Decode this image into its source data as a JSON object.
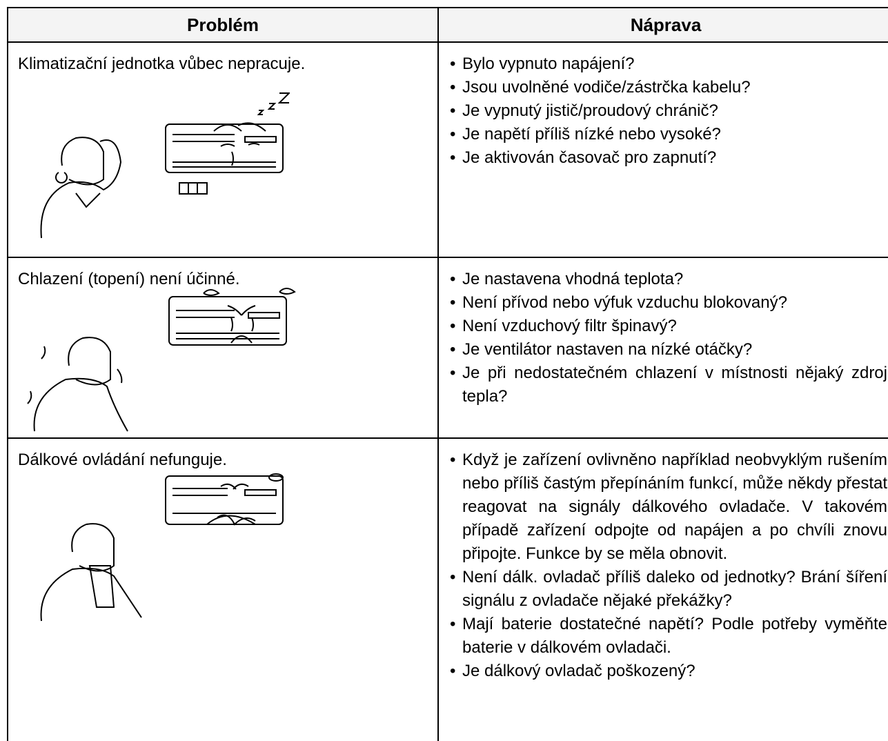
{
  "table": {
    "headers": [
      "Problém",
      "Náprava"
    ],
    "rows": [
      {
        "problem": "Klimatizační jednotka vůbec nepracuje.",
        "remedies": [
          "Bylo vypnuto napájení?",
          "Jsou uvolněné vodiče/zástrčka kabelu?",
          "Je vypnutý jistič/proudový chránič?",
          "Je napětí příliš nízké nebo vysoké?",
          "Je aktivován časovač pro zapnutí?"
        ]
      },
      {
        "problem": "Chlazení (topení) není účinné.",
        "remedies": [
          "Je nastavena vhodná teplota?",
          "Není přívod nebo výfuk vzduchu blokovaný?",
          "Není vzduchový filtr špinavý?",
          "Je ventilátor nastaven na nízké otáčky?",
          "Je při nedostatečném chlazení v místnosti nějaký zdroj tepla?"
        ]
      },
      {
        "problem": "Dálkové ovládání nefunguje.",
        "remedies": [
          "Když je zařízení ovlivněno například neobvyklým rušením nebo příliš častým přepínáním funkcí, může někdy přestat reagovat na signály dálkového ovladače. V takovém případě zařízení odpojte od napájen a po chvíli znovu připojte. Funkce by se měla obnovit.",
          "Není dálk. ovladač příliš daleko od jednotky? Brání šíření signálu z ovladače nějaké překážky?",
          "Mají baterie dostatečné napětí? Podle potřeby vyměňte baterie v dálkovém ovladači.",
          "Je dálkový ovladač poškozený?"
        ]
      }
    ]
  }
}
